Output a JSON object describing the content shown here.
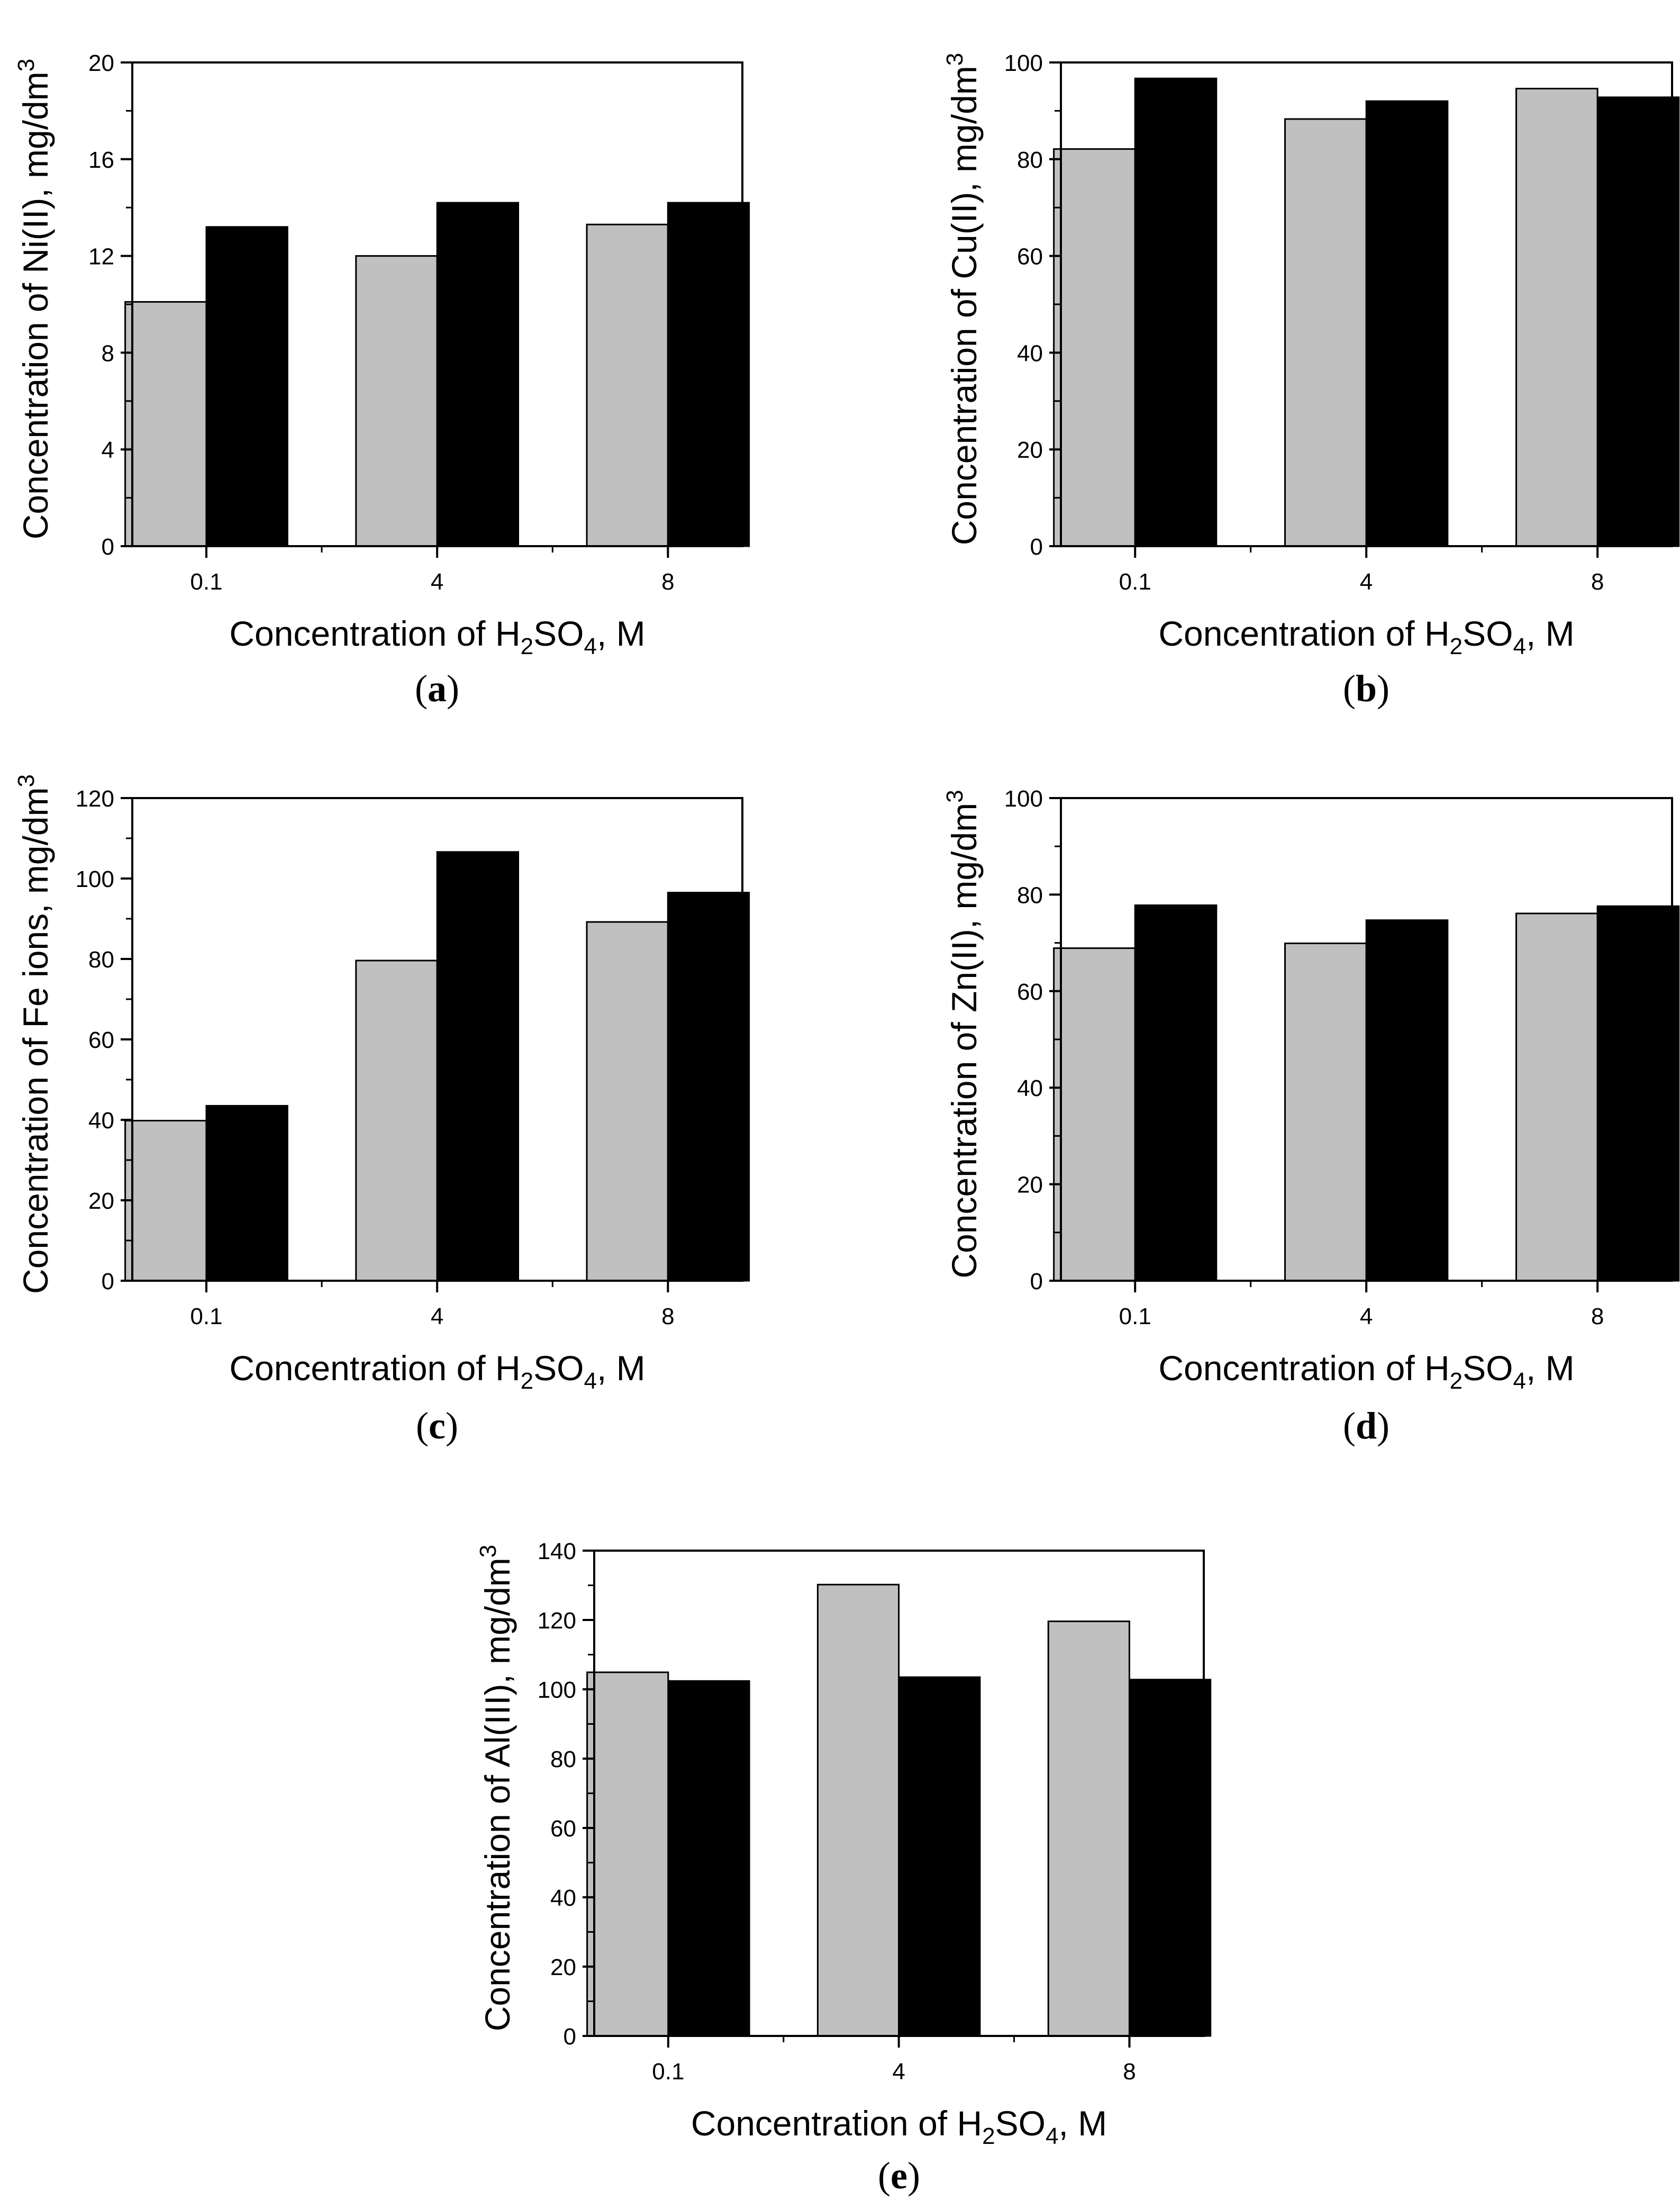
{
  "figure": {
    "bar_colors": {
      "series_1": "#c0c0c0",
      "series_2": "#000000"
    }
  },
  "chart_data": [
    {
      "type": "bar",
      "panel_label": "a",
      "categories": [
        "0.1",
        "4",
        "8"
      ],
      "series": [
        {
          "name": "series 1 (grey)",
          "values": [
            10.1,
            12.0,
            13.3
          ]
        },
        {
          "name": "series 2 (black)",
          "values": [
            13.2,
            14.2,
            14.2
          ]
        }
      ],
      "xlabel": {
        "prefix": "Concentration of H",
        "sub1": "2",
        "mid": "SO",
        "sub2": "4",
        "suffix": ", M"
      },
      "ylabel": {
        "text": "Concentration of Ni(II),  mg/dm",
        "sup": "3"
      },
      "ylim": [
        0,
        20
      ],
      "yticks": [
        0,
        4,
        8,
        12,
        16,
        20
      ],
      "yticks_minor": [
        2,
        6,
        10,
        14,
        18
      ]
    },
    {
      "type": "bar",
      "panel_label": "b",
      "categories": [
        "0.1",
        "4",
        "8"
      ],
      "series": [
        {
          "name": "series 1 (grey)",
          "values": [
            82.1,
            88.3,
            94.6
          ]
        },
        {
          "name": "series 2 (black)",
          "values": [
            96.7,
            92.0,
            92.8
          ]
        }
      ],
      "xlabel": {
        "prefix": "Concentration of H",
        "sub1": "2",
        "mid": "SO",
        "sub2": "4",
        "suffix": ", M"
      },
      "ylabel": {
        "text": "Concentration of Cu(II),  mg/dm",
        "sup": "3"
      },
      "ylim": [
        0,
        100
      ],
      "yticks": [
        0,
        20,
        40,
        60,
        80,
        100
      ],
      "yticks_minor": [
        10,
        30,
        50,
        70,
        90
      ]
    },
    {
      "type": "bar",
      "panel_label": "c",
      "categories": [
        "0.1",
        "4",
        "8"
      ],
      "series": [
        {
          "name": "series 1 (grey)",
          "values": [
            39.8,
            79.6,
            89.2
          ]
        },
        {
          "name": "series 2 (black)",
          "values": [
            43.5,
            106.6,
            96.5
          ]
        }
      ],
      "xlabel": {
        "prefix": "Concentration of H",
        "sub1": "2",
        "mid": "SO",
        "sub2": "4",
        "suffix": ", M"
      },
      "ylabel": {
        "text": "Concentration of Fe ions, mg/dm",
        "sup": "3"
      },
      "ylim": [
        0,
        120
      ],
      "yticks": [
        0,
        20,
        40,
        60,
        80,
        100,
        120
      ],
      "yticks_minor": [
        10,
        30,
        50,
        70,
        90,
        110
      ]
    },
    {
      "type": "bar",
      "panel_label": "d",
      "categories": [
        "0.1",
        "4",
        "8"
      ],
      "series": [
        {
          "name": "series 1 (grey)",
          "values": [
            68.9,
            69.9,
            76.1
          ]
        },
        {
          "name": "series 2 (black)",
          "values": [
            77.8,
            74.7,
            77.6
          ]
        }
      ],
      "xlabel": {
        "prefix": "Concentration of H",
        "sub1": "2",
        "mid": "SO",
        "sub2": "4",
        "suffix": ", M"
      },
      "ylabel": {
        "text": "Concentration of Zn(II),  mg/dm",
        "sup": "3"
      },
      "ylim": [
        0,
        100
      ],
      "yticks": [
        0,
        20,
        40,
        60,
        80,
        100
      ],
      "yticks_minor": [
        10,
        30,
        50,
        70,
        90
      ]
    },
    {
      "type": "bar",
      "panel_label": "e",
      "categories": [
        "0.1",
        "4",
        "8"
      ],
      "series": [
        {
          "name": "series 1 (grey)",
          "values": [
            104.9,
            130.2,
            119.6
          ]
        },
        {
          "name": "series 2 (black)",
          "values": [
            102.4,
            103.5,
            102.8
          ]
        }
      ],
      "xlabel": {
        "prefix": "Concentration of H",
        "sub1": "2",
        "mid": "SO",
        "sub2": "4",
        "suffix": ", M"
      },
      "ylabel": {
        "text": "Concentration of Al(III), mg/dm",
        "sup": "3"
      },
      "ylim": [
        0,
        140
      ],
      "yticks": [
        0,
        20,
        40,
        60,
        80,
        100,
        120,
        140
      ],
      "yticks_minor": [
        10,
        30,
        50,
        70,
        90,
        110,
        130
      ]
    }
  ]
}
